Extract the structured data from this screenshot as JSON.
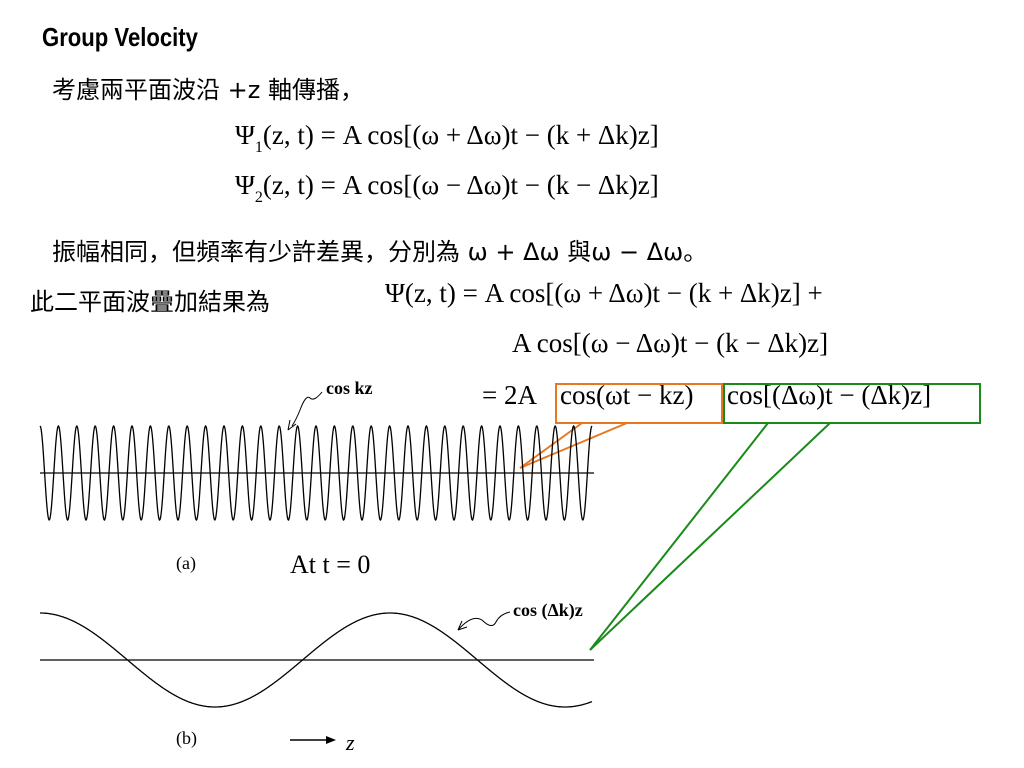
{
  "header": {
    "title": "Group Velocity"
  },
  "body": {
    "intro": "考慮兩平面波沿 +z 軸傳播，",
    "eq1": {
      "symbol": "Ψ",
      "sub": "1",
      "rest": "(z, t) = A cos[(ω + Δω)t − (k + Δk)z]"
    },
    "eq2": {
      "symbol": "Ψ",
      "sub": "2",
      "rest": "(z, t) = A cos[(ω − Δω)t − (k − Δk)z]"
    },
    "line2": "振幅相同，但頻率有少許差異，分別為 ω + Δω 與ω − Δω。",
    "line3_label": "此二平面波疊加結果為",
    "sum_line1": "Ψ(z, t) = A cos[(ω + Δω)t − (k + Δk)z] +",
    "sum_line2": "A cos[(ω − Δω)t − (k − Δk)z]",
    "sum_line3": {
      "prefix": "= 2A",
      "carrier": "cos(ωt − kz)",
      "envelope": "cos[(Δω)t − (Δk)z]"
    }
  },
  "figure": {
    "wave_a_label": "cos kz",
    "panel_a": "(a)",
    "time_note": "At t = 0",
    "wave_b_label": "cos (Δk)z",
    "panel_b": "(b)",
    "axis_label": "z"
  }
}
